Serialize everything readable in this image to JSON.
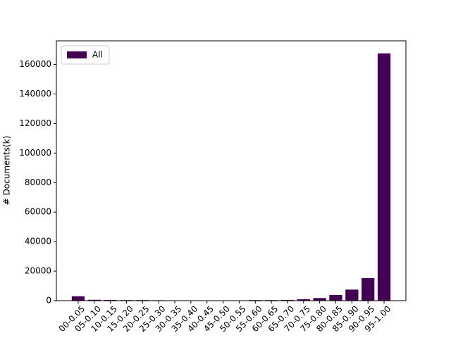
{
  "chart_data": {
    "type": "bar",
    "ylabel": "# Documents(k)",
    "categories": [
      "00-0.05",
      "05-0.10",
      "10-0.15",
      "15-0.20",
      "20-0.25",
      "25-0.30",
      "30-0.35",
      "35-0.40",
      "40-0.45",
      "45-0.50",
      "50-0.55",
      "55-0.60",
      "60-0.65",
      "65-0.70",
      "70-0.75",
      "75-0.80",
      "80-0.85",
      "85-0.90",
      "90-0.95",
      "95-1.00"
    ],
    "series": [
      {
        "name": "All",
        "color": "#440154",
        "values": [
          3000,
          600,
          500,
          400,
          400,
          300,
          100,
          100,
          100,
          100,
          200,
          400,
          400,
          500,
          1000,
          1800,
          3800,
          7500,
          15300,
          167500
        ]
      }
    ],
    "ylim": [
      0,
      176000
    ],
    "yticks": [
      0,
      20000,
      40000,
      60000,
      80000,
      100000,
      120000,
      140000,
      160000
    ],
    "legend": "upper left"
  }
}
